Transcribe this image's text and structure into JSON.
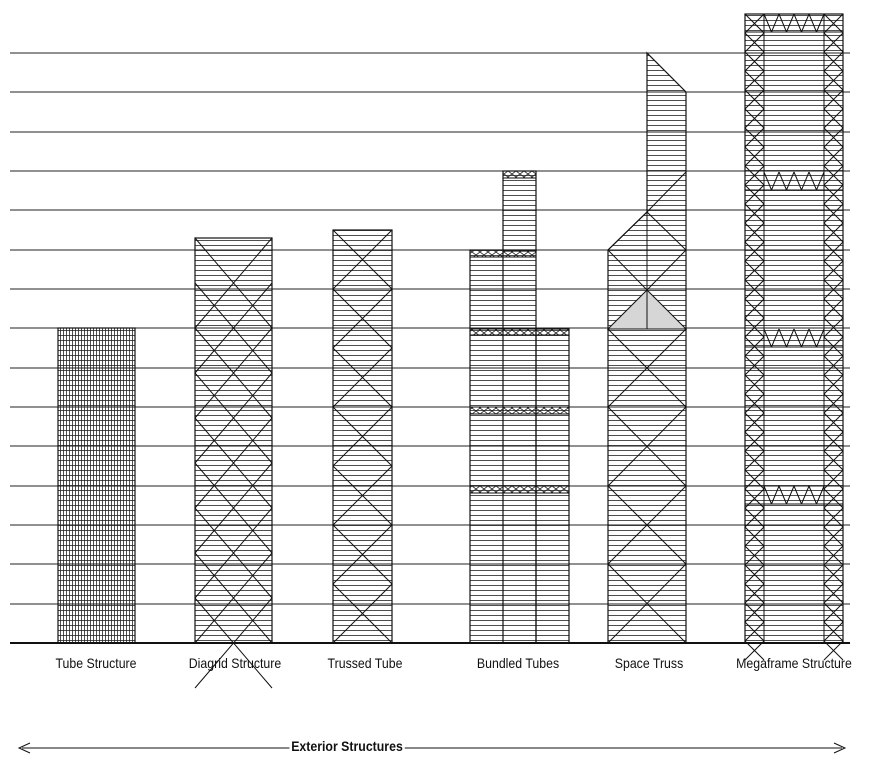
{
  "labels": {
    "tube": "Tube Structure",
    "diagrid": "Diagrid Structure",
    "trussed": "Trussed Tube",
    "bundled": "Bundled Tubes",
    "space": "Space Truss",
    "megaframe": "Megaframe Structure"
  },
  "axis": {
    "title": "Exterior Structures"
  }
}
